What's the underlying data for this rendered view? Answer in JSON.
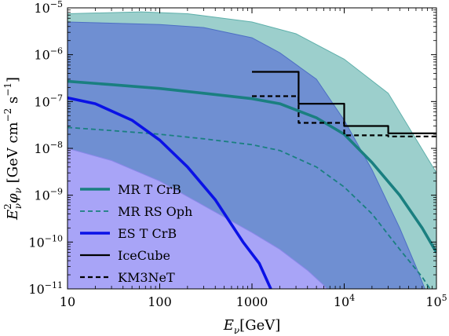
{
  "chart_data": {
    "type": "line",
    "xlabel": "Eν [GeV]",
    "ylabel": "E²ν φν [GeV cm⁻² s⁻¹]",
    "xscale": "log",
    "yscale": "log",
    "xlim": [
      10,
      100000
    ],
    "ylim": [
      1e-11,
      1e-05
    ],
    "x_ticks": [
      {
        "value": 10,
        "label": "10"
      },
      {
        "value": 100,
        "label": "100"
      },
      {
        "value": 1000,
        "label": "1000"
      },
      {
        "value": 10000,
        "base": "10",
        "exp": "4"
      },
      {
        "value": 100000,
        "base": "10",
        "exp": "5"
      }
    ],
    "y_ticks": [
      {
        "value": 1e-11,
        "base": "10",
        "exp": "−11"
      },
      {
        "value": 1e-10,
        "base": "10",
        "exp": "−10"
      },
      {
        "value": 1e-09,
        "base": "10",
        "exp": "−9"
      },
      {
        "value": 1e-08,
        "base": "10",
        "exp": "−8"
      },
      {
        "value": 1e-07,
        "base": "10",
        "exp": "−7"
      },
      {
        "value": 1e-06,
        "base": "10",
        "exp": "−6"
      },
      {
        "value": 1e-05,
        "base": "10",
        "exp": "−5"
      }
    ],
    "bands": [
      {
        "fill": "#9ccfcc",
        "stroke": "#5fb0ab",
        "upper": [
          [
            10,
            7.5e-06
          ],
          [
            63,
            8.2e-06
          ],
          [
            200,
            7.5e-06
          ],
          [
            1000,
            5e-06
          ],
          [
            3000,
            2.8e-06
          ],
          [
            10000,
            8e-07
          ],
          [
            30000,
            1.5e-07
          ],
          [
            100000,
            3e-09
          ]
        ],
        "lower": [
          [
            10,
            1e-11
          ],
          [
            100000,
            1e-11
          ]
        ]
      },
      {
        "fill": "#6f8fd2",
        "stroke": "#4d6fc4",
        "upper": [
          [
            10,
            5e-06
          ],
          [
            100,
            4.4e-06
          ],
          [
            300,
            3.8e-06
          ],
          [
            1000,
            2.3e-06
          ],
          [
            2000,
            1.1e-06
          ],
          [
            5000,
            3e-07
          ],
          [
            10000,
            4e-08
          ],
          [
            20000,
            3.5e-09
          ],
          [
            40000,
            2e-10
          ],
          [
            60000,
            3e-11
          ],
          [
            75000,
            1e-11
          ]
        ],
        "lower": [
          [
            10,
            1e-11
          ],
          [
            75000,
            1e-11
          ]
        ]
      },
      {
        "fill": "#a8a4f7",
        "stroke": "#8a87ea",
        "upper": [
          [
            10,
            1e-08
          ],
          [
            30,
            5.5e-09
          ],
          [
            100,
            2e-09
          ],
          [
            300,
            6e-10
          ],
          [
            1000,
            1.6e-10
          ],
          [
            2000,
            7e-11
          ],
          [
            4000,
            2.5e-11
          ],
          [
            6000,
            1.2e-11
          ],
          [
            6500,
            1e-11
          ]
        ],
        "lower": [
          [
            10,
            1e-11
          ],
          [
            6500,
            1e-11
          ]
        ]
      }
    ],
    "series": [
      {
        "name": "MR T CrB",
        "color": "#1a7f80",
        "style": "solid",
        "width": 3.6,
        "points": [
          [
            10,
            2.7e-07
          ],
          [
            30,
            2.3e-07
          ],
          [
            100,
            1.9e-07
          ],
          [
            300,
            1.5e-07
          ],
          [
            1000,
            1.15e-07
          ],
          [
            2000,
            9e-08
          ],
          [
            5000,
            4.5e-08
          ],
          [
            10000,
            2e-08
          ],
          [
            20000,
            5e-09
          ],
          [
            40000,
            1e-09
          ],
          [
            70000,
            2e-10
          ],
          [
            100000,
            6e-11
          ]
        ]
      },
      {
        "name": "MR RS Oph",
        "color": "#1a7f80",
        "style": "dashed",
        "width": 1.8,
        "points": [
          [
            10,
            2.8e-08
          ],
          [
            30,
            2.4e-08
          ],
          [
            100,
            2e-08
          ],
          [
            300,
            1.6e-08
          ],
          [
            1000,
            1.2e-08
          ],
          [
            2000,
            9e-09
          ],
          [
            5000,
            4e-09
          ],
          [
            10000,
            1.5e-09
          ],
          [
            20000,
            4e-10
          ],
          [
            40000,
            7e-11
          ],
          [
            70000,
            1.8e-11
          ],
          [
            85000,
            1e-11
          ]
        ]
      },
      {
        "name": "ES T CrB",
        "color": "#0a12e6",
        "style": "solid",
        "width": 3.6,
        "points": [
          [
            10,
            1.2e-07
          ],
          [
            20,
            9e-08
          ],
          [
            50,
            4e-08
          ],
          [
            100,
            1.5e-08
          ],
          [
            200,
            4e-09
          ],
          [
            400,
            8e-10
          ],
          [
            800,
            1e-10
          ],
          [
            1200,
            3.5e-11
          ],
          [
            1600,
            1e-11
          ]
        ]
      },
      {
        "name": "IceCube",
        "color": "#000000",
        "style": "solid",
        "width": 2.2,
        "points": [
          [
            1000,
            4.3e-07
          ],
          [
            3200,
            4.3e-07
          ],
          [
            3200,
            9e-08
          ],
          [
            10000,
            9e-08
          ],
          [
            10000,
            3e-08
          ],
          [
            30000,
            3e-08
          ],
          [
            30000,
            2.1e-08
          ],
          [
            100000,
            2.1e-08
          ]
        ]
      },
      {
        "name": "KM3NeT",
        "color": "#000000",
        "style": "dashed",
        "width": 2.2,
        "points": [
          [
            1000,
            1.3e-07
          ],
          [
            3200,
            1.3e-07
          ],
          [
            3200,
            3.5e-08
          ],
          [
            10000,
            3.5e-08
          ],
          [
            10000,
            1.9e-08
          ],
          [
            30000,
            1.9e-08
          ],
          [
            30000,
            1.8e-08
          ],
          [
            100000,
            1.8e-08
          ]
        ]
      }
    ]
  }
}
